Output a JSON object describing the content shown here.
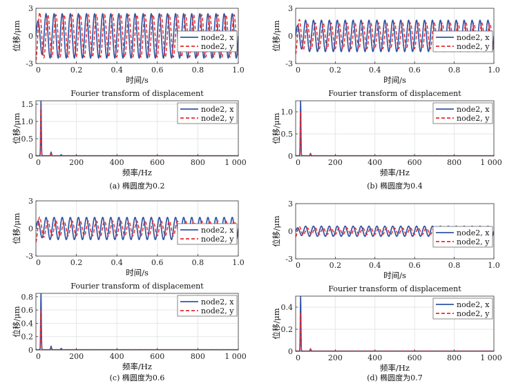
{
  "colors": {
    "x_series": "#2f55a4",
    "y_series": "#e8292e",
    "grid": "#e6e6e6",
    "axis": "#333333"
  },
  "chart_data": [
    {
      "panel": "a",
      "caption": "(a) 椭圆度为0.2",
      "type": "line",
      "ylabel": "位移/μm",
      "xlabel": "时间/s",
      "xlim": [
        0,
        1
      ],
      "ylim": [
        -3,
        3
      ],
      "xticks": [
        "0",
        "0.2",
        "0.4",
        "0.6",
        "0.8",
        "1.0"
      ],
      "yticks": [
        "-3",
        "0",
        "3"
      ],
      "legend": "right-center",
      "series": [
        {
          "name": "node2, x",
          "style": "solid",
          "amplitude": 2.4,
          "frequency_hz": 25
        },
        {
          "name": "node2, y",
          "style": "dashed",
          "amplitude": 2.3,
          "frequency_hz": 25,
          "initial_peak": 2.7
        }
      ]
    },
    {
      "panel": "a",
      "type": "line",
      "title": "Fourier transform of displacement",
      "ylabel": "位移/μm",
      "xlabel": "频率/Hz",
      "xlim": [
        0,
        1000
      ],
      "ylim": [
        0,
        1.6
      ],
      "xticks": [
        "0",
        "200",
        "400",
        "600",
        "800",
        "1 000"
      ],
      "yticks": [
        "0",
        "0.5",
        "1.0",
        "1.5"
      ],
      "legend": "top-right",
      "series": [
        {
          "name": "node2, x",
          "style": "solid",
          "peaks": [
            [
              25,
              1.6
            ],
            [
              75,
              0.1
            ],
            [
              125,
              0.03
            ]
          ]
        },
        {
          "name": "node2, y",
          "style": "dashed",
          "peaks": [
            [
              25,
              1.45
            ],
            [
              75,
              0.08
            ]
          ]
        }
      ]
    },
    {
      "panel": "b",
      "caption": "(b) 椭圆度为0.4",
      "type": "line",
      "ylabel": "位移/μm",
      "xlabel": "时间/s",
      "xlim": [
        0,
        1
      ],
      "ylim": [
        -3,
        3
      ],
      "xticks": [
        "0",
        "0.2",
        "0.4",
        "0.6",
        "0.8",
        "1.0"
      ],
      "yticks": [
        "-3",
        "0",
        "3"
      ],
      "legend": "right-center",
      "series": [
        {
          "name": "node2, x",
          "style": "solid",
          "amplitude": 1.7,
          "frequency_hz": 25
        },
        {
          "name": "node2, y",
          "style": "dashed",
          "amplitude": 1.4,
          "frequency_hz": 25,
          "initial_peak": 2.0
        }
      ]
    },
    {
      "panel": "b",
      "type": "line",
      "title": "Fourier transform of displacement",
      "ylabel": "位移/μm",
      "xlabel": "频率/Hz",
      "xlim": [
        0,
        1000
      ],
      "ylim": [
        0,
        1.25
      ],
      "xticks": [
        "0",
        "200",
        "400",
        "600",
        "800",
        "1 000"
      ],
      "yticks": [
        "0",
        "0.5",
        "1.0"
      ],
      "legend": "top-right",
      "series": [
        {
          "name": "node2, x",
          "style": "solid",
          "peaks": [
            [
              25,
              1.25
            ],
            [
              75,
              0.05
            ]
          ]
        },
        {
          "name": "node2, y",
          "style": "dashed",
          "peaks": [
            [
              25,
              1.0
            ],
            [
              75,
              0.04
            ]
          ]
        }
      ]
    },
    {
      "panel": "c",
      "caption": "(c) 椭圆度为0.6",
      "type": "line",
      "ylabel": "位移/μm",
      "xlabel": "时间/s",
      "xlim": [
        0,
        1
      ],
      "ylim": [
        -3,
        3
      ],
      "xticks": [
        "0",
        "0.2",
        "0.4",
        "0.6",
        "0.8",
        "1.0"
      ],
      "yticks": [
        "-3",
        "0",
        "3"
      ],
      "legend": "right-center",
      "series": [
        {
          "name": "node2, x",
          "style": "solid",
          "amplitude": 1.2,
          "frequency_hz": 25
        },
        {
          "name": "node2, y",
          "style": "dashed",
          "amplitude": 0.8,
          "frequency_hz": 25,
          "initial_peak": 1.5
        }
      ]
    },
    {
      "panel": "c",
      "type": "line",
      "title": "Fourier transform of displacement",
      "ylabel": "位移/μm",
      "xlabel": "频率/Hz",
      "xlim": [
        0,
        1000
      ],
      "ylim": [
        0,
        0.85
      ],
      "xticks": [
        "0",
        "200",
        "400",
        "600",
        "800",
        "1 000"
      ],
      "yticks": [
        "0",
        "0.2",
        "0.4",
        "0.6",
        "0.8"
      ],
      "legend": "top-right",
      "series": [
        {
          "name": "node2, x",
          "style": "solid",
          "peaks": [
            [
              25,
              0.85
            ],
            [
              75,
              0.05
            ],
            [
              125,
              0.02
            ]
          ]
        },
        {
          "name": "node2, y",
          "style": "dashed",
          "peaks": [
            [
              25,
              0.6
            ],
            [
              75,
              0.03
            ]
          ]
        }
      ]
    },
    {
      "panel": "d",
      "caption": "(d) 椭圆度为0.7",
      "type": "line",
      "ylabel": "位移/μm",
      "xlabel": "时间/s",
      "xlim": [
        0,
        1
      ],
      "ylim": [
        -3,
        3
      ],
      "xticks": [
        "0",
        "0.2",
        "0.4",
        "0.6",
        "0.8",
        "1.0"
      ],
      "yticks": [
        "-3",
        "0",
        "3"
      ],
      "legend": "right-center",
      "series": [
        {
          "name": "node2, x",
          "style": "solid",
          "amplitude": 0.55,
          "frequency_hz": 25
        },
        {
          "name": "node2, y",
          "style": "dashed",
          "amplitude": 0.35,
          "frequency_hz": 25,
          "initial_peak": 0.6
        }
      ]
    },
    {
      "panel": "d",
      "type": "line",
      "title": "Fourier transform of displacement",
      "ylabel": "位移/μm",
      "xlabel": "频率/Hz",
      "xlim": [
        0,
        1000
      ],
      "ylim": [
        0,
        0.5
      ],
      "xticks": [
        "0",
        "200",
        "400",
        "600",
        "800",
        "1 000"
      ],
      "yticks": [
        "0",
        "0.2",
        "0.4"
      ],
      "legend": "top-right",
      "series": [
        {
          "name": "node2, x",
          "style": "solid",
          "peaks": [
            [
              25,
              0.5
            ],
            [
              75,
              0.02
            ]
          ]
        },
        {
          "name": "node2, y",
          "style": "dashed",
          "peaks": [
            [
              25,
              0.35
            ],
            [
              75,
              0.02
            ]
          ]
        }
      ]
    }
  ]
}
